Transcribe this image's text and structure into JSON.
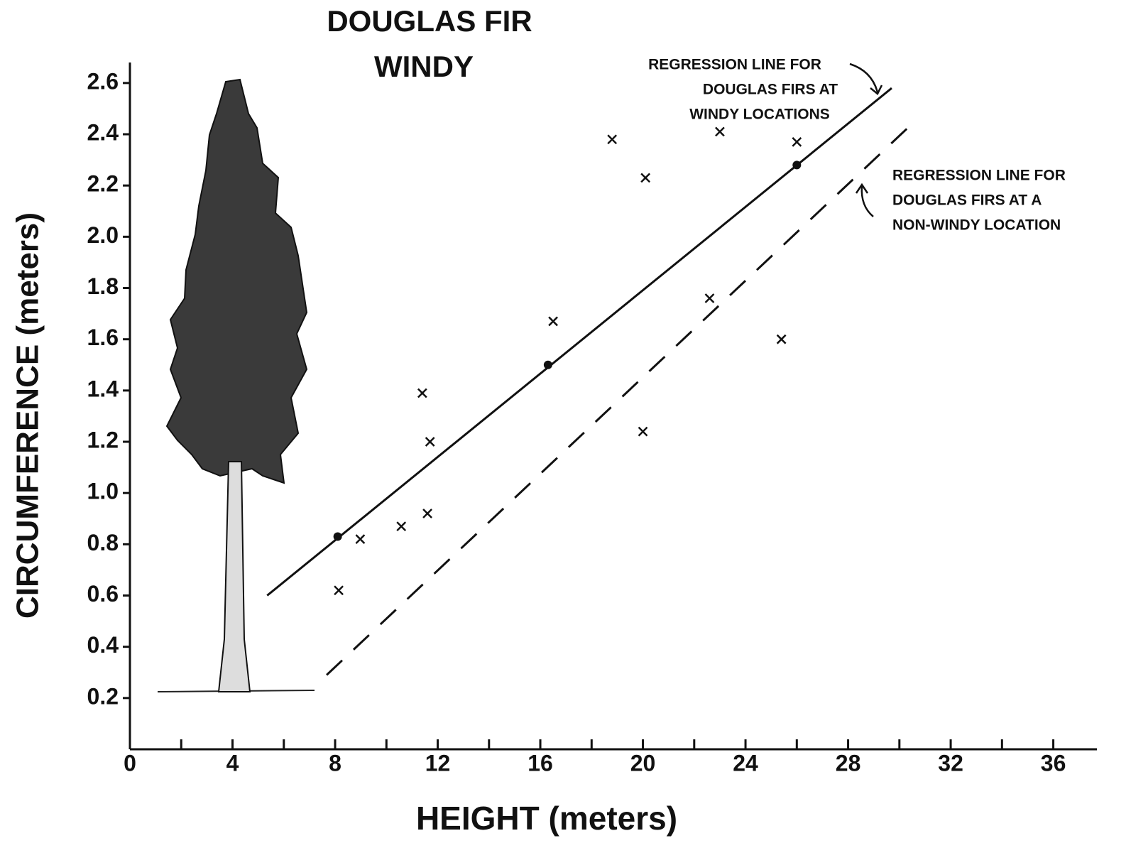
{
  "chart_data": {
    "type": "scatter",
    "title": [
      "DOUGLAS FIR",
      "WINDY"
    ],
    "x_label": "HEIGHT (meters)",
    "y_label": "CIRCUMFERENCE (meters)",
    "xlim": [
      0,
      37.7
    ],
    "ylim": [
      0,
      2.68
    ],
    "xticks": [
      0,
      4,
      8,
      12,
      16,
      20,
      24,
      28,
      32,
      36
    ],
    "xminor_ticks": [
      2,
      6,
      10,
      14,
      18,
      22,
      26,
      30,
      34
    ],
    "yticks": [
      0.2,
      0.4,
      0.6,
      0.8,
      {
        "value": 1,
        "label": "1.0"
      },
      1.2,
      1.4,
      1.6,
      1.8,
      {
        "value": 2,
        "label": "2.0"
      },
      2.2,
      2.4,
      2.6
    ],
    "points": {
      "x": [
        8.14,
        8.98,
        10.58,
        11.6,
        11.4,
        11.7,
        16.5,
        18.8,
        20.1,
        20.0,
        22.6,
        23.0,
        25.4,
        26.0
      ],
      "y": [
        0.62,
        0.82,
        0.87,
        0.92,
        1.39,
        1.2,
        1.67,
        2.38,
        2.23,
        1.24,
        1.76,
        2.41,
        1.6,
        2.37
      ]
    },
    "regression_lines": [
      {
        "x": [
          5.35,
          29.7
        ],
        "y": [
          0.6,
          2.58
        ],
        "dashed": false,
        "label": [
          "REGRESSION LINE FOR",
          "DOUGLAS FIRS AT",
          "WINDY LOCATIONS"
        ],
        "dots": {
          "x": [
            8.1,
            16.3,
            26.0
          ],
          "y": [
            0.83,
            1.5,
            2.28
          ]
        }
      },
      {
        "x": [
          7.67,
          30.7
        ],
        "y": [
          0.29,
          2.46
        ],
        "dashed": true,
        "label": [
          "REGRESSION LINE FOR",
          "DOUGLAS FIRS AT A",
          "NON-WINDY LOCATION"
        ]
      }
    ],
    "color": "#111111"
  }
}
